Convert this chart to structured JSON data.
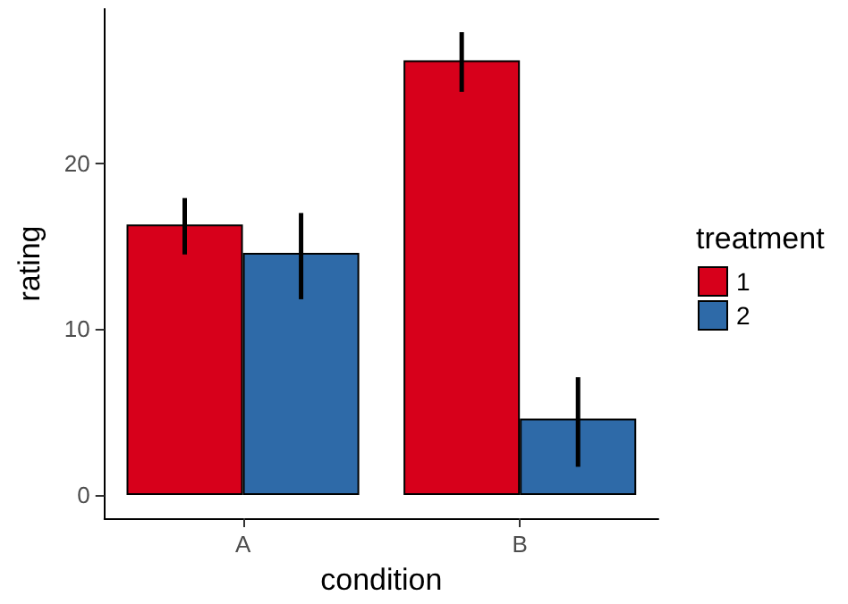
{
  "chart_data": {
    "type": "bar",
    "xlabel": "condition",
    "ylabel": "rating",
    "legend_title": "treatment",
    "categories": [
      "A",
      "B"
    ],
    "series": [
      {
        "name": "1",
        "color": "#d7001b",
        "values": [
          16.3,
          26.2
        ],
        "errors": [
          [
            14.5,
            17.9
          ],
          [
            24.3,
            27.9
          ]
        ]
      },
      {
        "name": "2",
        "color": "#2e6aa8",
        "values": [
          14.6,
          4.6
        ],
        "errors": [
          [
            11.8,
            17.0
          ],
          [
            1.7,
            7.1
          ]
        ]
      }
    ],
    "ylim": [
      -1.4,
      29.3
    ],
    "yticks": [
      0,
      10,
      20
    ],
    "grid": false,
    "legend": "right"
  }
}
